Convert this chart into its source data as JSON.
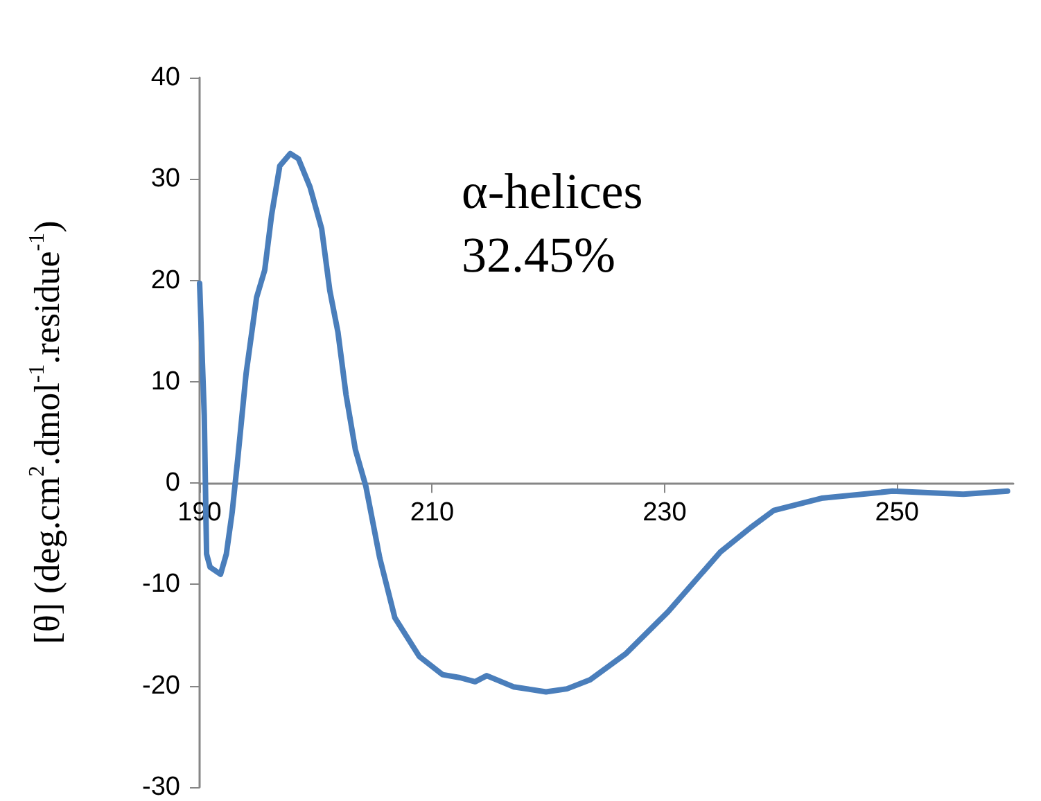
{
  "chart_data": {
    "type": "line",
    "ylabel": "[θ] (deg.cm$^{2}$.dmol$^{-1}$.residue$^{-1}$)",
    "annotations": [
      "α-helices\n32.45%"
    ],
    "series": [
      {
        "color": "#4a7ebb",
        "x": [
          190,
          190.4,
          190.6,
          190.9,
          191.8,
          192.3,
          192.8,
          193.3,
          194,
          194.9,
          195.6,
          196.2,
          196.9,
          197.8,
          198.5,
          199.5,
          200.5,
          201.2,
          201.9,
          202.6,
          203.4,
          204.3,
          205.5,
          206.8,
          208.9,
          210.9,
          212.4,
          213.7,
          214.7,
          217,
          219.8,
          221.6,
          223.6,
          226.7,
          230.3,
          234.8,
          237.4,
          239.4,
          243.5,
          249.6,
          255.7,
          259.5
        ],
        "values": [
          19.7,
          6.7,
          -7,
          -8.3,
          -9,
          -7,
          -2.9,
          2.6,
          10.8,
          18.3,
          21,
          26.5,
          31.3,
          32.5,
          32,
          29.2,
          25.1,
          19,
          14.9,
          8.7,
          3.3,
          -0.3,
          -7.4,
          -13.3,
          -17.1,
          -18.9,
          -19.2,
          -19.6,
          -19,
          -20.1,
          -20.6,
          -20.3,
          -19.4,
          -16.8,
          -12.7,
          -6.8,
          -4.4,
          -2.7,
          -1.5,
          -0.8,
          -1.1,
          -0.8
        ]
      }
    ],
    "xlim": [
      190,
      260
    ],
    "xticks": [
      190,
      210,
      230,
      250
    ],
    "ylim": [
      -30,
      40
    ],
    "yticks": [
      -30,
      -20,
      -10,
      0,
      10,
      20,
      30,
      40
    ],
    "marker": "none",
    "line_style": "solid"
  }
}
